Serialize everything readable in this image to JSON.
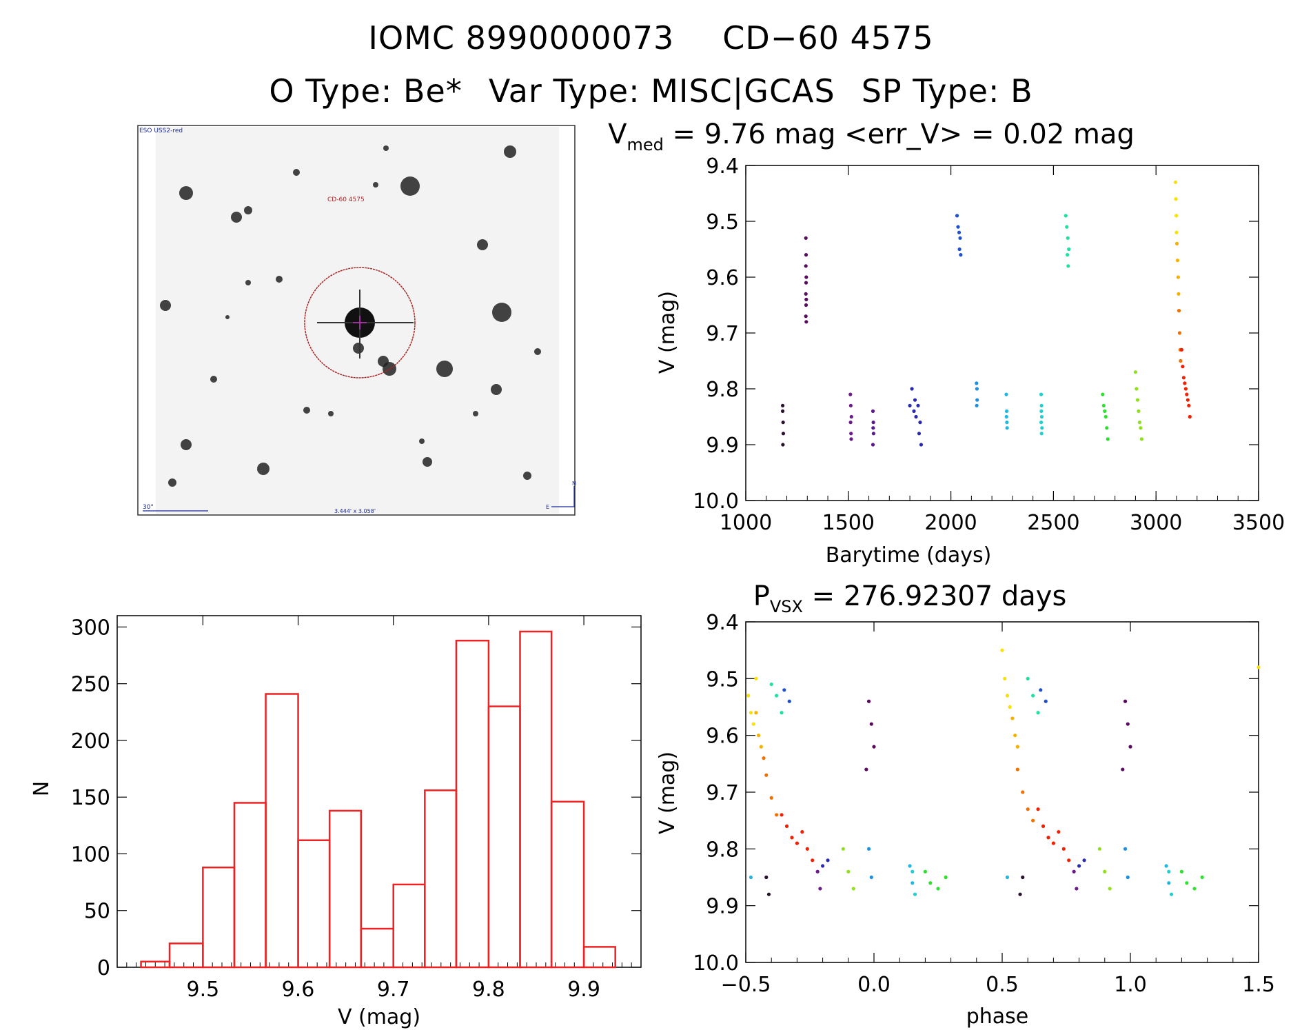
{
  "header": {
    "line1": [
      "IOMC 8990000073",
      "CD−60  4575"
    ],
    "line2": [
      "O Type: Be*",
      "Var Type: MISC|GCAS",
      "SP Type: B"
    ]
  },
  "finder_chart": {
    "survey_label": "ESO USS2-red",
    "target_label": "CD-60 4575",
    "scale_label": "30\"",
    "fov_label": "3.444' x 3.058'",
    "north_label": "N",
    "east_label": "E"
  },
  "chart_data": [
    {
      "type": "scatter",
      "id": "lightcurve",
      "title_main": "V",
      "title_sub": "med",
      "title_rest": " = 9.76 mag <err_V> = 0.02 mag",
      "xlabel": "Barytime (days)",
      "ylabel": "V (mag)",
      "xlim": [
        1000,
        3500
      ],
      "ylim": [
        10.0,
        9.4
      ],
      "xticks": [
        "1000",
        "1500",
        "2000",
        "2500",
        "3000",
        "3500"
      ],
      "yticks": [
        "9.4",
        "9.5",
        "9.6",
        "9.7",
        "9.8",
        "9.9",
        "10.0"
      ],
      "series": [
        {
          "color": "#2a0f2f",
          "x": [
            1180,
            1182,
            1180,
            1183,
            1181
          ],
          "y": [
            9.83,
            9.86,
            9.84,
            9.88,
            9.9
          ]
        },
        {
          "color": "#5a0a5f",
          "x": [
            1293,
            1294,
            1293,
            1295,
            1294,
            1293,
            1295,
            1294,
            1293,
            1295
          ],
          "y": [
            9.53,
            9.56,
            9.58,
            9.6,
            9.61,
            9.63,
            9.64,
            9.65,
            9.67,
            9.68
          ]
        },
        {
          "color": "#6a1a8a",
          "x": [
            1510,
            1512,
            1515,
            1511,
            1513,
            1514
          ],
          "y": [
            9.81,
            9.83,
            9.85,
            9.86,
            9.88,
            9.89
          ]
        },
        {
          "color": "#5a1a8a",
          "x": [
            1620,
            1622,
            1621,
            1623,
            1620
          ],
          "y": [
            9.84,
            9.86,
            9.87,
            9.88,
            9.9
          ]
        },
        {
          "color": "#2a2ab0",
          "x": [
            1800,
            1810,
            1820,
            1825,
            1830,
            1840,
            1845,
            1850,
            1855
          ],
          "y": [
            9.83,
            9.8,
            9.84,
            9.82,
            9.85,
            9.83,
            9.88,
            9.86,
            9.9
          ]
        },
        {
          "color": "#1e50d0",
          "x": [
            2030,
            2035,
            2040,
            2045,
            2042,
            2048
          ],
          "y": [
            9.49,
            9.51,
            9.52,
            9.53,
            9.55,
            9.56
          ]
        },
        {
          "color": "#1e90e0",
          "x": [
            2125,
            2127,
            2128,
            2126
          ],
          "y": [
            9.79,
            9.8,
            9.82,
            9.83
          ]
        },
        {
          "color": "#20b8e0",
          "x": [
            2270,
            2272,
            2271,
            2273,
            2274
          ],
          "y": [
            9.81,
            9.84,
            9.85,
            9.86,
            9.87
          ]
        },
        {
          "color": "#20d0d0",
          "x": [
            2440,
            2442,
            2441,
            2443,
            2440,
            2444,
            2442
          ],
          "y": [
            9.81,
            9.83,
            9.84,
            9.85,
            9.86,
            9.87,
            9.88
          ]
        },
        {
          "color": "#20e0a0",
          "x": [
            2560,
            2565,
            2570,
            2575,
            2568,
            2572
          ],
          "y": [
            9.49,
            9.51,
            9.53,
            9.55,
            9.56,
            9.58
          ]
        },
        {
          "color": "#30e030",
          "x": [
            2740,
            2745,
            2750,
            2755,
            2760,
            2765
          ],
          "y": [
            9.81,
            9.83,
            9.84,
            9.85,
            9.87,
            9.89
          ]
        },
        {
          "color": "#90e020",
          "x": [
            2900,
            2905,
            2910,
            2915,
            2920,
            2925,
            2930
          ],
          "y": [
            9.77,
            9.8,
            9.82,
            9.84,
            9.86,
            9.87,
            9.89
          ]
        },
        {
          "color": "#f8e000",
          "x": [
            3095,
            3097,
            3099,
            3100
          ],
          "y": [
            9.43,
            9.46,
            9.49,
            9.52
          ]
        },
        {
          "color": "#f8b000",
          "x": [
            3102,
            3105,
            3108,
            3110
          ],
          "y": [
            9.54,
            9.57,
            9.6,
            9.63
          ]
        },
        {
          "color": "#f07000",
          "x": [
            3112,
            3115,
            3118,
            3120
          ],
          "y": [
            9.66,
            9.7,
            9.73,
            9.75
          ]
        },
        {
          "color": "#f02000",
          "x": [
            3125,
            3130,
            3135,
            3140,
            3145,
            3150,
            3155,
            3160,
            3165
          ],
          "y": [
            9.73,
            9.76,
            9.78,
            9.79,
            9.8,
            9.81,
            9.82,
            9.83,
            9.85
          ]
        }
      ]
    },
    {
      "type": "bar",
      "id": "histogram",
      "xlabel": "V (mag)",
      "ylabel": "N",
      "xlim": [
        9.41,
        9.96
      ],
      "ylim": [
        0,
        310
      ],
      "xticks": [
        "9.5",
        "9.6",
        "9.7",
        "9.8",
        "9.9"
      ],
      "yticks": [
        "0",
        "50",
        "100",
        "150",
        "200",
        "250",
        "300"
      ],
      "bin_edges": [
        9.435,
        9.465,
        9.5,
        9.533,
        9.566,
        9.6,
        9.633,
        9.666,
        9.7,
        9.733,
        9.766,
        9.8,
        9.833,
        9.866,
        9.9,
        9.933
      ],
      "values": [
        5,
        21,
        88,
        145,
        241,
        112,
        138,
        34,
        73,
        156,
        288,
        230,
        296,
        146,
        18
      ],
      "color": "#ee2222"
    },
    {
      "type": "scatter",
      "id": "phased",
      "title_main": "P",
      "title_sub": "VSX",
      "title_rest": " = 276.92307 days",
      "xlabel": "phase",
      "ylabel": "V (mag)",
      "xlim": [
        -0.5,
        1.5
      ],
      "ylim": [
        10.0,
        9.4
      ],
      "xticks": [
        "−0.5",
        "0.0",
        "0.5",
        "1.0",
        "1.5"
      ],
      "yticks": [
        "9.4",
        "9.5",
        "9.6",
        "9.7",
        "9.8",
        "9.9",
        "10.0"
      ],
      "series": [
        {
          "color": "#f8e000",
          "x": [
            -0.49,
            -0.48,
            -0.47,
            -0.46,
            0.5,
            0.51,
            0.52,
            0.53,
            1.5
          ],
          "y": [
            9.53,
            9.56,
            9.58,
            9.5,
            9.45,
            9.5,
            9.53,
            9.55,
            9.48
          ]
        },
        {
          "color": "#f8b000",
          "x": [
            -0.46,
            -0.45,
            -0.44,
            0.54,
            0.55,
            0.56
          ],
          "y": [
            9.56,
            9.6,
            9.62,
            9.57,
            9.6,
            9.62
          ]
        },
        {
          "color": "#f07000",
          "x": [
            -0.43,
            -0.42,
            -0.4,
            -0.38,
            0.56,
            0.58,
            0.6,
            0.62
          ],
          "y": [
            9.64,
            9.67,
            9.71,
            9.74,
            9.66,
            9.7,
            9.73,
            9.75
          ]
        },
        {
          "color": "#f02000",
          "x": [
            -0.36,
            -0.34,
            -0.32,
            -0.3,
            -0.28,
            -0.26,
            -0.24,
            0.64,
            0.66,
            0.68,
            0.7,
            0.72,
            0.74,
            0.76
          ],
          "y": [
            9.74,
            9.76,
            9.78,
            9.79,
            9.77,
            9.8,
            9.82,
            9.73,
            9.76,
            9.78,
            9.79,
            9.77,
            9.8,
            9.82
          ]
        },
        {
          "color": "#20e0a0",
          "x": [
            -0.4,
            -0.38,
            -0.36,
            0.6,
            0.62,
            0.64
          ],
          "y": [
            9.51,
            9.53,
            9.56,
            9.5,
            9.53,
            9.56
          ]
        },
        {
          "color": "#1e50d0",
          "x": [
            -0.35,
            -0.33,
            0.65,
            0.67
          ],
          "y": [
            9.52,
            9.54,
            9.52,
            9.54
          ]
        },
        {
          "color": "#2a2ab0",
          "x": [
            -0.2,
            -0.18,
            0.8,
            0.82
          ],
          "y": [
            9.83,
            9.82,
            9.83,
            9.82
          ]
        },
        {
          "color": "#6a1a8a",
          "x": [
            -0.22,
            -0.21,
            0.78,
            0.79
          ],
          "y": [
            9.84,
            9.87,
            9.84,
            9.87
          ]
        },
        {
          "color": "#90e020",
          "x": [
            -0.12,
            -0.1,
            -0.08,
            0.88,
            0.9,
            0.92
          ],
          "y": [
            9.8,
            9.84,
            9.87,
            9.8,
            9.84,
            9.87
          ]
        },
        {
          "color": "#1e90e0",
          "x": [
            -0.02,
            -0.01,
            0.98,
            0.99
          ],
          "y": [
            9.8,
            9.85,
            9.8,
            9.85
          ]
        },
        {
          "color": "#5a0a5f",
          "x": [
            -0.02,
            -0.01,
            0.0,
            -0.03,
            0.98,
            0.99,
            1.0,
            0.97
          ],
          "y": [
            9.54,
            9.58,
            9.62,
            9.66,
            9.54,
            9.58,
            9.62,
            9.66
          ]
        },
        {
          "color": "#20b8e0",
          "x": [
            -0.48,
            0.52,
            0.14,
            0.15,
            1.14,
            1.15
          ],
          "y": [
            9.85,
            9.85,
            9.83,
            9.86,
            9.83,
            9.86
          ]
        },
        {
          "color": "#20d0d0",
          "x": [
            0.15,
            0.16,
            1.15,
            1.16
          ],
          "y": [
            9.84,
            9.88,
            9.84,
            9.88
          ]
        },
        {
          "color": "#30e030",
          "x": [
            0.2,
            0.22,
            0.25,
            0.28,
            1.2,
            1.22,
            1.25,
            1.28
          ],
          "y": [
            9.84,
            9.86,
            9.87,
            9.85,
            9.84,
            9.86,
            9.87,
            9.85
          ]
        },
        {
          "color": "#2a0f2f",
          "x": [
            -0.42,
            -0.41,
            0.58,
            0.57
          ],
          "y": [
            9.85,
            9.88,
            9.85,
            9.88
          ]
        }
      ]
    }
  ]
}
